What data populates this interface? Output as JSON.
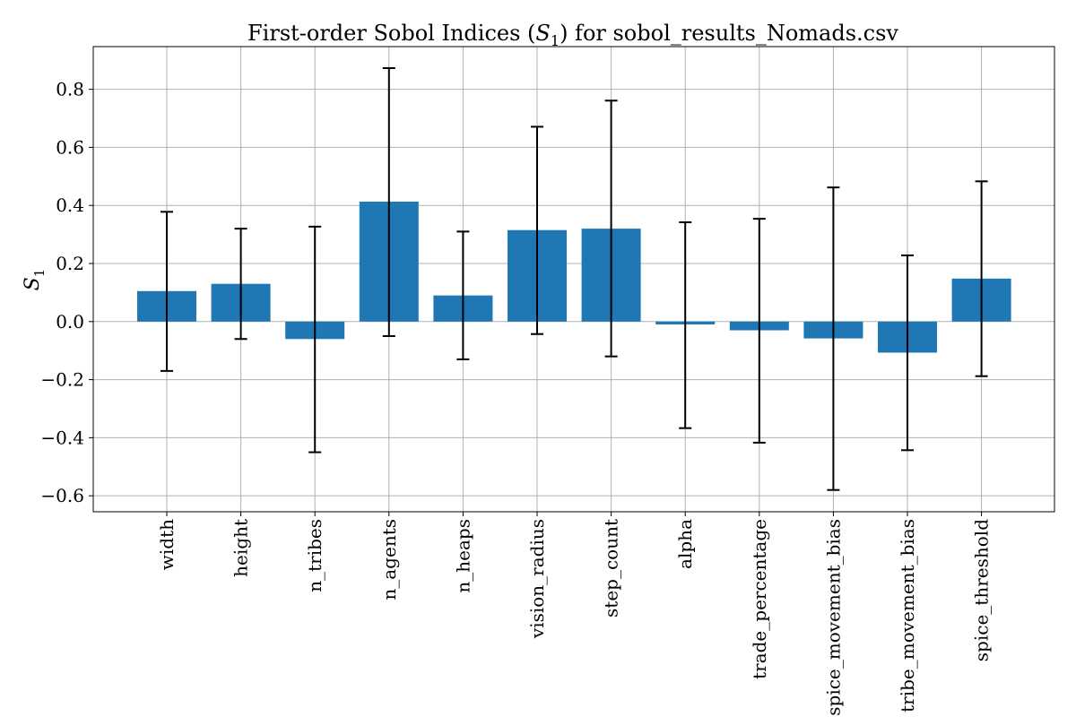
{
  "chart_data": {
    "type": "bar",
    "title": {
      "prefix": "First-order Sobol Indices (",
      "symbol": "S",
      "subscript": "1",
      "suffix": ") for sobol_results_Nomads.csv"
    },
    "ylabel": {
      "symbol": "S",
      "subscript": "1"
    },
    "xlabel": "",
    "categories": [
      "width",
      "height",
      "n_tribes",
      "n_agents",
      "n_heaps",
      "vision_radius",
      "step_count",
      "alpha",
      "trade_percentage",
      "spice_movement_bias",
      "tribe_movement_bias",
      "spice_threshold"
    ],
    "values": [
      0.105,
      0.13,
      -0.06,
      0.413,
      0.09,
      0.315,
      0.32,
      -0.01,
      -0.03,
      -0.058,
      -0.107,
      0.148
    ],
    "error": {
      "low": [
        -0.17,
        -0.06,
        -0.45,
        -0.05,
        -0.13,
        -0.043,
        -0.12,
        -0.367,
        -0.417,
        -0.58,
        -0.443,
        -0.188
      ],
      "high": [
        0.378,
        0.32,
        0.327,
        0.873,
        0.31,
        0.671,
        0.761,
        0.342,
        0.354,
        0.462,
        0.228,
        0.483
      ]
    },
    "ylim": [
      -0.655,
      0.947
    ],
    "yticks": [
      -0.6,
      -0.4,
      -0.2,
      0.0,
      0.2,
      0.4,
      0.6,
      0.8
    ],
    "ytick_labels": [
      "−0.6",
      "−0.4",
      "−0.2",
      "0.0",
      "0.2",
      "0.4",
      "0.6",
      "0.8"
    ],
    "grid": true,
    "legend": "none",
    "colors": {
      "bar": "#1f77b4",
      "error": "#000000",
      "grid": "#b0b0b0",
      "axes": "#000000"
    }
  }
}
